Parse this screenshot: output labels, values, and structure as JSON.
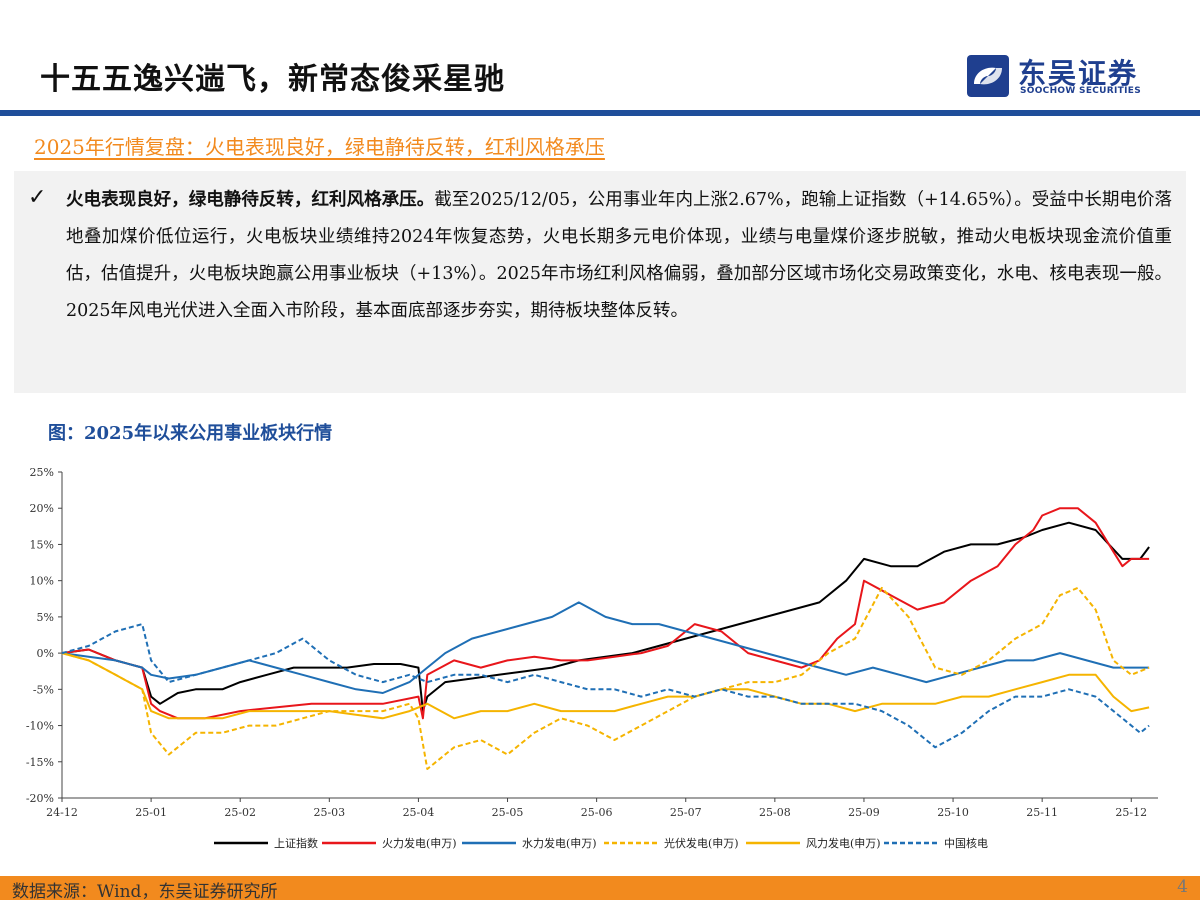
{
  "header": {
    "title": "十五五逸兴遄飞，新常态俊采星驰"
  },
  "logo": {
    "name_cn": "东吴证券",
    "name_en": "SOOCHOW SECURITIES",
    "color": "#1f3f8f"
  },
  "section_title": "2025年行情复盘：火电表现良好，绿电静待反转，红利风格承压",
  "bullet": {
    "icon": "check-icon",
    "bold": "火电表现良好，绿电静待反转，红利风格承压。",
    "text": "截至2025/12/05，公用事业年内上涨2.67%，跑输上证指数（+14.65%）。受益中长期电价落地叠加煤价低位运行，火电板块业绩维持2024年恢复态势，火电长期多元电价体现，业绩与电量煤价逐步脱敏，推动火电板块现金流价值重估，估值提升，火电板块跑赢公用事业板块（+13%）。2025年市场红利风格偏弱，叠加部分区域市场化交易政策变化，水电、核电表现一般。2025年风电光伏进入全面入市阶段，基本面底部逐步夯实，期待板块整体反转。"
  },
  "figure_caption": "图：2025年以来公用事业板块行情",
  "footer": {
    "source": "数据来源：Wind，东吴证券研究所",
    "page": "4"
  },
  "colors": {
    "accent": "#f28a1e",
    "brand": "#1f4e9a"
  },
  "chart_data": {
    "type": "line",
    "title": "",
    "xlabel": "",
    "ylabel": "",
    "x_ticks": [
      "24-12",
      "25-01",
      "25-02",
      "25-03",
      "25-04",
      "25-05",
      "25-06",
      "25-07",
      "25-08",
      "25-09",
      "25-10",
      "25-11",
      "25-12"
    ],
    "x_range": [
      0,
      12.3
    ],
    "y_ticks": [
      "25%",
      "20%",
      "15%",
      "10%",
      "5%",
      "0%",
      "-5%",
      "-10%",
      "-15%",
      "-20%"
    ],
    "ylim": [
      -20,
      25
    ],
    "grid": false,
    "legend_position": "bottom",
    "series": [
      {
        "name": "上证指数",
        "color": "#000000",
        "dash": "solid",
        "x": [
          0,
          0.3,
          0.6,
          0.9,
          1.0,
          1.1,
          1.3,
          1.5,
          1.8,
          2.0,
          2.3,
          2.6,
          2.9,
          3.2,
          3.5,
          3.8,
          4.0,
          4.05,
          4.1,
          4.3,
          4.6,
          4.9,
          5.2,
          5.5,
          5.8,
          6.1,
          6.4,
          6.7,
          7.0,
          7.3,
          7.6,
          7.9,
          8.2,
          8.5,
          8.8,
          9.0,
          9.3,
          9.6,
          9.9,
          10.2,
          10.5,
          10.8,
          11.0,
          11.3,
          11.6,
          11.9,
          12.1,
          12.2
        ],
        "y": [
          0,
          0.5,
          -1,
          -2,
          -6,
          -7,
          -5.5,
          -5,
          -5,
          -4,
          -3,
          -2,
          -2,
          -2,
          -1.5,
          -1.5,
          -2,
          -8,
          -6,
          -4,
          -3.5,
          -3,
          -2.5,
          -2,
          -1,
          -0.5,
          0,
          1,
          2,
          3,
          4,
          5,
          6,
          7,
          10,
          13,
          12,
          12,
          14,
          15,
          15,
          16,
          17,
          18,
          17,
          13,
          13,
          14.65
        ]
      },
      {
        "name": "火力发电(申万)",
        "color": "#e8161b",
        "dash": "solid",
        "x": [
          0,
          0.3,
          0.6,
          0.9,
          1.0,
          1.1,
          1.3,
          1.6,
          2.0,
          2.4,
          2.8,
          3.2,
          3.6,
          4.0,
          4.05,
          4.1,
          4.4,
          4.7,
          5.0,
          5.3,
          5.6,
          5.9,
          6.2,
          6.5,
          6.8,
          7.1,
          7.4,
          7.7,
          8.0,
          8.3,
          8.5,
          8.7,
          8.9,
          9.0,
          9.3,
          9.6,
          9.9,
          10.2,
          10.5,
          10.7,
          10.9,
          11.0,
          11.2,
          11.4,
          11.6,
          11.8,
          11.9,
          12.0,
          12.2
        ],
        "y": [
          0,
          0.5,
          -1,
          -2,
          -7,
          -8,
          -9,
          -9,
          -8,
          -7.5,
          -7,
          -7,
          -7,
          -6,
          -9,
          -3,
          -1,
          -2,
          -1,
          -0.5,
          -1,
          -1,
          -0.5,
          0,
          1,
          4,
          3,
          0,
          -1,
          -2,
          -1,
          2,
          4,
          10,
          8,
          6,
          7,
          10,
          12,
          15,
          17,
          19,
          20,
          20,
          18,
          14,
          12,
          13,
          13
        ]
      },
      {
        "name": "水力发电(申万)",
        "color": "#1f6fb5",
        "dash": "solid",
        "x": [
          0,
          0.3,
          0.6,
          0.9,
          1.0,
          1.2,
          1.5,
          1.8,
          2.1,
          2.4,
          2.7,
          3.0,
          3.3,
          3.6,
          3.9,
          4.1,
          4.3,
          4.6,
          4.9,
          5.2,
          5.5,
          5.8,
          6.1,
          6.4,
          6.7,
          7.0,
          7.3,
          7.6,
          7.9,
          8.2,
          8.5,
          8.8,
          9.1,
          9.4,
          9.7,
          10.0,
          10.3,
          10.6,
          10.9,
          11.2,
          11.5,
          11.8,
          12.0,
          12.2
        ],
        "y": [
          0,
          -0.5,
          -1,
          -2,
          -3,
          -3.5,
          -3,
          -2,
          -1,
          -2,
          -3,
          -4,
          -5,
          -5.5,
          -4,
          -2,
          0,
          2,
          3,
          4,
          5,
          7,
          5,
          4,
          4,
          3,
          2,
          1,
          0,
          -1,
          -2,
          -3,
          -2,
          -3,
          -4,
          -3,
          -2,
          -1,
          -1,
          0,
          -1,
          -2,
          -2,
          -2
        ]
      },
      {
        "name": "光伏发电(申万)",
        "color": "#f5b400",
        "dash": "dashed",
        "x": [
          0,
          0.3,
          0.6,
          0.9,
          1.0,
          1.2,
          1.5,
          1.8,
          2.1,
          2.4,
          2.7,
          3.0,
          3.3,
          3.6,
          3.9,
          4.0,
          4.1,
          4.4,
          4.7,
          5.0,
          5.3,
          5.6,
          5.9,
          6.2,
          6.5,
          6.8,
          7.1,
          7.4,
          7.7,
          8.0,
          8.3,
          8.6,
          8.9,
          9.2,
          9.5,
          9.8,
          10.1,
          10.4,
          10.7,
          11.0,
          11.2,
          11.4,
          11.6,
          11.8,
          12.0,
          12.2
        ],
        "y": [
          0,
          -1,
          -3,
          -5,
          -11,
          -14,
          -11,
          -11,
          -10,
          -10,
          -9,
          -8,
          -8,
          -8,
          -7,
          -9,
          -16,
          -13,
          -12,
          -14,
          -11,
          -9,
          -10,
          -12,
          -10,
          -8,
          -6,
          -5,
          -4,
          -4,
          -3,
          0,
          2,
          9,
          5,
          -2,
          -3,
          -1,
          2,
          4,
          8,
          9,
          6,
          -1,
          -3,
          -2
        ]
      },
      {
        "name": "风力发电(申万)",
        "color": "#f5b400",
        "dash": "solid",
        "x": [
          0,
          0.3,
          0.6,
          0.9,
          1.0,
          1.2,
          1.5,
          1.8,
          2.1,
          2.4,
          2.7,
          3.0,
          3.3,
          3.6,
          3.9,
          4.1,
          4.4,
          4.7,
          5.0,
          5.3,
          5.6,
          5.9,
          6.2,
          6.5,
          6.8,
          7.1,
          7.4,
          7.7,
          8.0,
          8.3,
          8.6,
          8.9,
          9.2,
          9.5,
          9.8,
          10.1,
          10.4,
          10.7,
          11.0,
          11.3,
          11.6,
          11.8,
          12.0,
          12.2
        ],
        "y": [
          0,
          -1,
          -3,
          -5,
          -8,
          -9,
          -9,
          -9,
          -8,
          -8,
          -8,
          -8,
          -8.5,
          -9,
          -8,
          -7,
          -9,
          -8,
          -8,
          -7,
          -8,
          -8,
          -8,
          -7,
          -6,
          -6,
          -5,
          -5,
          -6,
          -7,
          -7,
          -8,
          -7,
          -7,
          -7,
          -6,
          -6,
          -5,
          -4,
          -3,
          -3,
          -6,
          -8,
          -7.5
        ]
      },
      {
        "name": "中国核电",
        "color": "#1f6fb5",
        "dash": "dashed",
        "x": [
          0,
          0.3,
          0.6,
          0.9,
          1.0,
          1.2,
          1.5,
          1.8,
          2.1,
          2.4,
          2.7,
          3.0,
          3.3,
          3.6,
          3.9,
          4.1,
          4.4,
          4.7,
          5.0,
          5.3,
          5.6,
          5.9,
          6.2,
          6.5,
          6.8,
          7.1,
          7.4,
          7.7,
          8.0,
          8.3,
          8.6,
          8.9,
          9.2,
          9.5,
          9.8,
          10.1,
          10.4,
          10.7,
          11.0,
          11.3,
          11.6,
          11.9,
          12.1,
          12.2
        ],
        "y": [
          0,
          1,
          3,
          4,
          -1,
          -4,
          -3,
          -2,
          -1,
          0,
          2,
          -1,
          -3,
          -4,
          -3,
          -4,
          -3,
          -3,
          -4,
          -3,
          -4,
          -5,
          -5,
          -6,
          -5,
          -6,
          -5,
          -6,
          -6,
          -7,
          -7,
          -7,
          -8,
          -10,
          -13,
          -11,
          -8,
          -6,
          -6,
          -5,
          -6,
          -9,
          -11,
          -10
        ]
      }
    ]
  }
}
